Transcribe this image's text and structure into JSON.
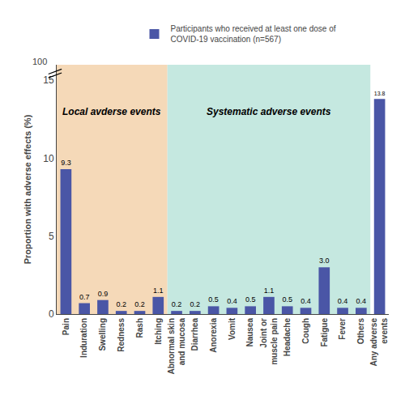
{
  "chart_data": {
    "type": "bar",
    "categories": [
      "Pain",
      "Induration",
      "Swelling",
      "Redness",
      "Rash",
      "Itching",
      "Abnormal skin\nand mucosa",
      "Diarrhea",
      "Anorexia",
      "Vomit",
      "Nausea",
      "Joint or\nmuscle pain",
      "Headache",
      "Cough",
      "Fatigue",
      "Fever",
      "Others",
      "Any adverse\nevents"
    ],
    "series": [
      {
        "name": "Participants who received at least one dose of\nCOVID-19 vaccination (n=567)",
        "color": "#4a56a6",
        "values": [
          9.3,
          0.7,
          0.9,
          0.2,
          0.2,
          1.1,
          0.2,
          0.2,
          0.5,
          0.4,
          0.5,
          1.1,
          0.5,
          0.4,
          3.0,
          0.4,
          0.4,
          13.8
        ],
        "value_labels": [
          "9.3",
          "0.7",
          "0.9",
          "0.2",
          "0.2",
          "1.1",
          "0.2",
          "0.2",
          "0.5",
          "0.4",
          "0.5",
          "1.1",
          "0.5",
          "0.4",
          "3.0",
          "0.4",
          "0.4",
          "13.8"
        ]
      }
    ],
    "ylabel": "Proportion with adverse effects (%)",
    "ylim": [
      0,
      16
    ],
    "yticks": [
      0,
      5,
      10,
      15
    ],
    "data_labels": true,
    "grid": false,
    "legend": "top",
    "regions": [
      {
        "label": "Local avderse events",
        "color": "#f5d9b8",
        "start": "Pain",
        "end": "Itching"
      },
      {
        "label": "Systematic adverse events",
        "color": "#c5e8e0",
        "start": "Abnormal skin\nand mucosa",
        "end": "Others"
      }
    ],
    "annotations": [
      {
        "text": "100"
      }
    ]
  }
}
